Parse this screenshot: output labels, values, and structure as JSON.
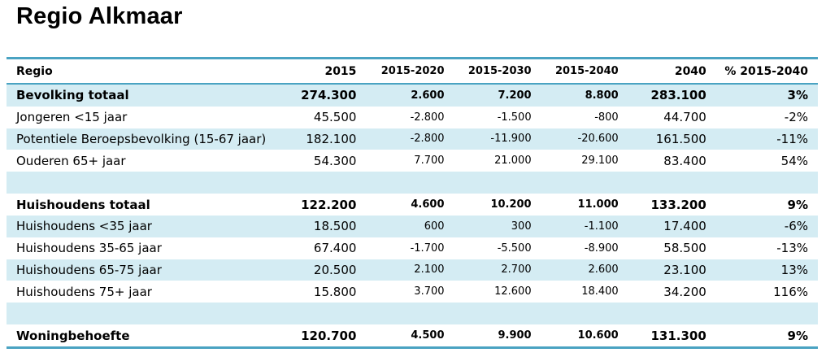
{
  "title": "Regio Alkmaar",
  "table": {
    "headers": [
      "Regio",
      "2015",
      "2015-2020",
      "2015-2030",
      "2015-2040",
      "2040",
      "% 2015-2040"
    ],
    "rows": [
      {
        "cells": [
          "Bevolking totaal",
          "274.300",
          "2.600",
          "7.200",
          "8.800",
          "283.100",
          "3%"
        ],
        "bold": true,
        "shaded": true
      },
      {
        "cells": [
          "Jongeren <15 jaar",
          "45.500",
          "-2.800",
          "-1.500",
          "-800",
          "44.700",
          "-2%"
        ],
        "bold": false,
        "shaded": false
      },
      {
        "cells": [
          "Potentiele Beroepsbevolking (15-67 jaar)",
          "182.100",
          "-2.800",
          "-11.900",
          "-20.600",
          "161.500",
          "-11%"
        ],
        "bold": false,
        "shaded": true
      },
      {
        "cells": [
          "Ouderen 65+ jaar",
          "54.300",
          "7.700",
          "21.000",
          "29.100",
          "83.400",
          "54%"
        ],
        "bold": false,
        "shaded": false
      },
      {
        "cells": [
          "",
          "",
          "",
          "",
          "",
          "",
          ""
        ],
        "bold": false,
        "shaded": true,
        "spacer": true
      },
      {
        "cells": [
          "Huishoudens totaal",
          "122.200",
          "4.600",
          "10.200",
          "11.000",
          "133.200",
          "9%"
        ],
        "bold": true,
        "shaded": false
      },
      {
        "cells": [
          "Huishoudens <35 jaar",
          "18.500",
          "600",
          "300",
          "-1.100",
          "17.400",
          "-6%"
        ],
        "bold": false,
        "shaded": true
      },
      {
        "cells": [
          "Huishoudens 35-65 jaar",
          "67.400",
          "-1.700",
          "-5.500",
          "-8.900",
          "58.500",
          "-13%"
        ],
        "bold": false,
        "shaded": false
      },
      {
        "cells": [
          "Huishoudens 65-75 jaar",
          "20.500",
          "2.100",
          "2.700",
          "2.600",
          "23.100",
          "13%"
        ],
        "bold": false,
        "shaded": true
      },
      {
        "cells": [
          "Huishoudens 75+ jaar",
          "15.800",
          "3.700",
          "12.600",
          "18.400",
          "34.200",
          "116%"
        ],
        "bold": false,
        "shaded": false
      },
      {
        "cells": [
          "",
          "",
          "",
          "",
          "",
          "",
          ""
        ],
        "bold": false,
        "shaded": true,
        "spacer": true
      },
      {
        "cells": [
          "Woningbehoefte",
          "120.700",
          "4.500",
          "9.900",
          "10.600",
          "131.300",
          "9%"
        ],
        "bold": true,
        "shaded": false
      }
    ]
  },
  "colors": {
    "accent_line": "#4aa3c2",
    "row_shade": "#d4ecf3"
  }
}
